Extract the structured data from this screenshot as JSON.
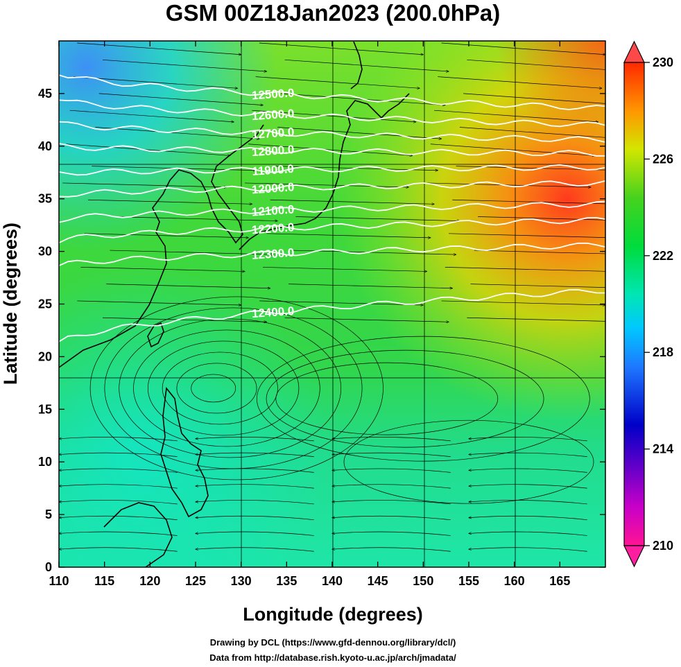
{
  "title": "GSM 00Z18Jan2023 (200.0hPa)",
  "credits": {
    "line1": "Drawing by DCL (https://www.gfd-dennou.org/library/dcl/)",
    "line2": "Data from http://database.rish.kyoto-u.ac.jp/arch/jmadata/"
  },
  "chart_data": {
    "type": "heatmap",
    "xlabel": "Longitude (degrees)",
    "ylabel": "Latitude  (degrees)",
    "xlim": [
      110,
      170
    ],
    "ylim": [
      0,
      50
    ],
    "xticks": [
      110,
      115,
      120,
      125,
      130,
      135,
      140,
      145,
      150,
      155,
      160,
      165
    ],
    "yticks": [
      0,
      5,
      10,
      15,
      20,
      25,
      30,
      35,
      40,
      45
    ],
    "grid_x": [
      130,
      140,
      150,
      160
    ],
    "grid_y": [
      20,
      40
    ],
    "colorbar": {
      "range": [
        210,
        230
      ],
      "tick_labels": [
        "210",
        "214",
        "218",
        "222",
        "226",
        "230"
      ],
      "tick_values": [
        210,
        214,
        218,
        222,
        226,
        230
      ],
      "colors": [
        "#ff1493",
        "#9400d3",
        "#0000c8",
        "#1e64ff",
        "#00d2ff",
        "#00e6b4",
        "#00dc3c",
        "#32d21e",
        "#a0e614",
        "#f0e600",
        "#ff9600",
        "#ff3200",
        "#ff4040"
      ],
      "extend": "both"
    },
    "contours": [
      {
        "label": "12500.0",
        "lat_west": 47.0,
        "lat_east": 43.6
      },
      {
        "label": "12600.0",
        "lat_west": 44.5,
        "lat_east": 42.0
      },
      {
        "label": "12700.0",
        "lat_west": 42.2,
        "lat_east": 40.6
      },
      {
        "label": "12800.0",
        "lat_west": 40.0,
        "lat_east": 39.3
      },
      {
        "label": "11900.0",
        "lat_west": 37.4,
        "lat_east": 38.0
      },
      {
        "label": "12000.0",
        "lat_west": 35.3,
        "lat_east": 36.5
      },
      {
        "label": "12100.0",
        "lat_west": 33.0,
        "lat_east": 34.5
      },
      {
        "label": "12200.0",
        "lat_west": 31.0,
        "lat_east": 33.0
      },
      {
        "label": "12300.0",
        "lat_west": 28.6,
        "lat_east": 30.6
      },
      {
        "label": "12400.0",
        "lat_west": 21.2,
        "lat_east": 26.3
      }
    ],
    "vortex_center": {
      "lon": 126.5,
      "lat": 17.0
    }
  }
}
